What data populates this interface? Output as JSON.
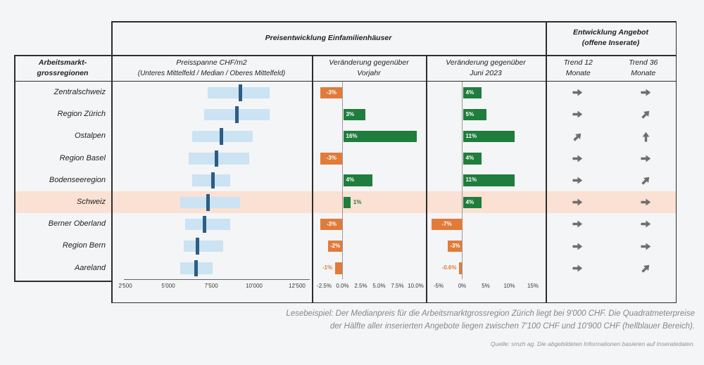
{
  "header": {
    "main_title": "Preisentwicklung Einfamilienhäuser",
    "offer_title": [
      "Entwicklung Angebot",
      "(offene Inserate)"
    ],
    "col_region": [
      "Arbeitsmarkt-",
      "grossregionen"
    ],
    "col_price": [
      "Preisspanne CHF/m2",
      "(Unteres Mittelfeld / Median / Oberes Mittelfeld)"
    ],
    "col_yoy": [
      "Veränderung gegenüber",
      "Vorjahr"
    ],
    "col_june": [
      "Veränderung gegenüber",
      "Juni 2023"
    ],
    "col_trend12": [
      "Trend 12",
      "Monate"
    ],
    "col_trend36": [
      "Trend 36",
      "Monate"
    ]
  },
  "axes": {
    "price_ticks": [
      "2'500",
      "5'000",
      "7'500",
      "10'000",
      "12'500"
    ],
    "yoy_ticks": [
      "-2.5%",
      "0.0%",
      "2.5%",
      "5.0%",
      "7.5%",
      "10.0%"
    ],
    "june_ticks": [
      "-5%",
      "0%",
      "5%",
      "10%",
      "15%"
    ]
  },
  "rows": [
    {
      "region": "Zentralschweiz",
      "price_low": 7300,
      "price_median": 9200,
      "price_high": 10900,
      "yoy_pct": -3,
      "yoy_label": "-3%",
      "june_pct": 4,
      "june_label": "4%",
      "trend_12": "right",
      "trend_36": "right",
      "highlight": false
    },
    {
      "region": "Region Zürich",
      "price_low": 7100,
      "price_median": 9000,
      "price_high": 10900,
      "yoy_pct": 3,
      "yoy_label": "3%",
      "june_pct": 5,
      "june_label": "5%",
      "trend_12": "right",
      "trend_36": "up-right",
      "highlight": false
    },
    {
      "region": "Ostalpen",
      "price_low": 6400,
      "price_median": 8100,
      "price_high": 9900,
      "yoy_pct": 16,
      "yoy_label": "16%",
      "june_pct": 11,
      "june_label": "11%",
      "trend_12": "up-right",
      "trend_36": "up",
      "highlight": false
    },
    {
      "region": "Region Basel",
      "price_low": 6200,
      "price_median": 7800,
      "price_high": 9700,
      "yoy_pct": -3,
      "yoy_label": "-3%",
      "june_pct": 4,
      "june_label": "4%",
      "trend_12": "right",
      "trend_36": "right",
      "highlight": false
    },
    {
      "region": "Bodenseeregion",
      "price_low": 6400,
      "price_median": 7600,
      "price_high": 8600,
      "yoy_pct": 4,
      "yoy_label": "4%",
      "june_pct": 11,
      "june_label": "11%",
      "trend_12": "right",
      "trend_36": "up-right",
      "highlight": false
    },
    {
      "region": "Schweiz",
      "price_low": 5700,
      "price_median": 7300,
      "price_high": 9200,
      "yoy_pct": 1,
      "yoy_label": "1%",
      "june_pct": 4,
      "june_label": "4%",
      "trend_12": "right",
      "trend_36": "right",
      "highlight": true
    },
    {
      "region": "Berner Oberland",
      "price_low": 6000,
      "price_median": 7100,
      "price_high": 8600,
      "yoy_pct": -3,
      "yoy_label": "-3%",
      "june_pct": -7,
      "june_label": "-7%",
      "trend_12": "right",
      "trend_36": "right",
      "highlight": false
    },
    {
      "region": "Region Bern",
      "price_low": 5900,
      "price_median": 6700,
      "price_high": 8200,
      "yoy_pct": -2,
      "yoy_label": "-2%",
      "june_pct": -3,
      "june_label": "-3%",
      "trend_12": "right",
      "trend_36": "right",
      "highlight": false
    },
    {
      "region": "Aareland",
      "price_low": 5700,
      "price_median": 6600,
      "price_high": 7600,
      "yoy_pct": -1,
      "yoy_label": "-1%",
      "june_pct": -0.6,
      "june_label": "-0.6%",
      "trend_12": "right",
      "trend_36": "up-right",
      "highlight": false
    }
  ],
  "footer": {
    "lesebeispiel_line1": "Lesebeispiel: Der Medianpreis für die Arbeitsmarktgrossregion Zürich liegt bei 9'000 CHF. Die Quadratmeterpreise",
    "lesebeispiel_line2": "der Hälfte aller inserierten Angebote liegen zwischen 7'100 CHF und 10'900 CHF (hellblauer Bereich).",
    "quelle": "Quelle: smzh ag. Die abgebildeten Informationen basieren auf Inseratedaten."
  },
  "colors": {
    "light_blue": "#cbe3f2",
    "navy": "#2c5d85",
    "green": "#1f7d3d",
    "orange": "#e07b3a",
    "highlight_band": "#fbe1d3",
    "arrow_gray": "#6e6e6e"
  },
  "chart_data": {
    "type": "table",
    "title": "Preisentwicklung Einfamilienhäuser / Entwicklung Angebot (offene Inserate)",
    "categories": [
      "Zentralschweiz",
      "Region Zürich",
      "Ostalpen",
      "Region Basel",
      "Bodenseeregion",
      "Schweiz",
      "Berner Oberland",
      "Region Bern",
      "Aareland"
    ],
    "charts": [
      {
        "type": "range-bar",
        "title": "Preisspanne CHF/m2 (Unteres Mittelfeld / Median / Oberes Mittelfeld)",
        "xlim": [
          2500,
          12500
        ],
        "tick_labels": [
          "2'500",
          "5'000",
          "7'500",
          "10'000",
          "12'500"
        ],
        "series": [
          {
            "name": "Unteres Mittelfeld",
            "values": [
              7300,
              7100,
              6400,
              6200,
              6400,
              5700,
              6000,
              5900,
              5700
            ]
          },
          {
            "name": "Median",
            "values": [
              9200,
              9000,
              8100,
              7800,
              7600,
              7300,
              7100,
              6700,
              6600
            ]
          },
          {
            "name": "Oberes Mittelfeld",
            "values": [
              10900,
              10900,
              9900,
              9700,
              8600,
              9200,
              8600,
              8200,
              7600
            ]
          }
        ]
      },
      {
        "type": "bar",
        "title": "Veränderung gegenüber Vorjahr (%)",
        "xlim": [
          -2.5,
          10
        ],
        "tick_labels": [
          "-2.5%",
          "0.0%",
          "2.5%",
          "5.0%",
          "7.5%",
          "10.0%"
        ],
        "values": [
          -3,
          3,
          16,
          -3,
          4,
          1,
          -3,
          -2,
          -1
        ],
        "note": "positive bars green, negative bars orange; 16% bar clipped at axis max"
      },
      {
        "type": "bar",
        "title": "Veränderung gegenüber Juni 2023 (%)",
        "xlim": [
          -5,
          15
        ],
        "tick_labels": [
          "-5%",
          "0%",
          "5%",
          "10%",
          "15%"
        ],
        "values": [
          4,
          5,
          11,
          4,
          11,
          4,
          -7,
          -3,
          -0.6
        ],
        "note": "positive bars green, negative bars orange; -7% bar clipped at axis min"
      },
      {
        "type": "table",
        "title": "Entwicklung Angebot (offene Inserate)",
        "series": [
          {
            "name": "Trend 12 Monate",
            "values": [
              "right",
              "right",
              "up-right",
              "right",
              "right",
              "right",
              "right",
              "right",
              "right"
            ]
          },
          {
            "name": "Trend 36 Monate",
            "values": [
              "right",
              "up-right",
              "up",
              "right",
              "up-right",
              "right",
              "right",
              "right",
              "up-right"
            ]
          }
        ]
      }
    ],
    "annotations": {
      "highlighted_row": "Schweiz",
      "legend_position": "none",
      "grid": "off"
    }
  }
}
